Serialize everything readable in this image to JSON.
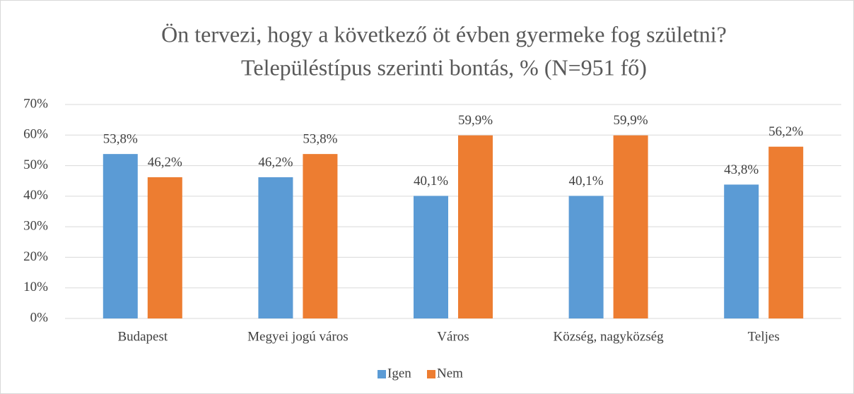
{
  "chart_data": {
    "type": "bar",
    "title": "Ön tervezi, hogy a következő öt évben gyermeke fog születni?",
    "subtitle": "Településtípus szerinti bontás, % (N=951 fő)",
    "categories": [
      "Budapest",
      "Megyei jogú város",
      "Város",
      "Község, nagyközség",
      "Teljes"
    ],
    "series": [
      {
        "name": "Igen",
        "color": "#5b9bd5",
        "values": [
          53.8,
          46.2,
          40.1,
          40.1,
          43.8
        ],
        "value_labels": [
          "53,8%",
          "46,2%",
          "40,1%",
          "40,1%",
          "43,8%"
        ]
      },
      {
        "name": "Nem",
        "color": "#ed7d31",
        "values": [
          46.2,
          53.8,
          59.9,
          59.9,
          56.2
        ],
        "value_labels": [
          "46,2%",
          "53,8%",
          "59,9%",
          "59,9%",
          "56,2%"
        ]
      }
    ],
    "ylim": [
      0,
      70
    ],
    "yticks": [
      {
        "value": 0,
        "label": "0%"
      },
      {
        "value": 10,
        "label": "10%"
      },
      {
        "value": 20,
        "label": "20%"
      },
      {
        "value": 30,
        "label": "30%"
      },
      {
        "value": 40,
        "label": "40%"
      },
      {
        "value": 50,
        "label": "50%"
      },
      {
        "value": 60,
        "label": "60%"
      },
      {
        "value": 70,
        "label": "70%"
      }
    ],
    "grid": true,
    "legend": "bottom"
  }
}
